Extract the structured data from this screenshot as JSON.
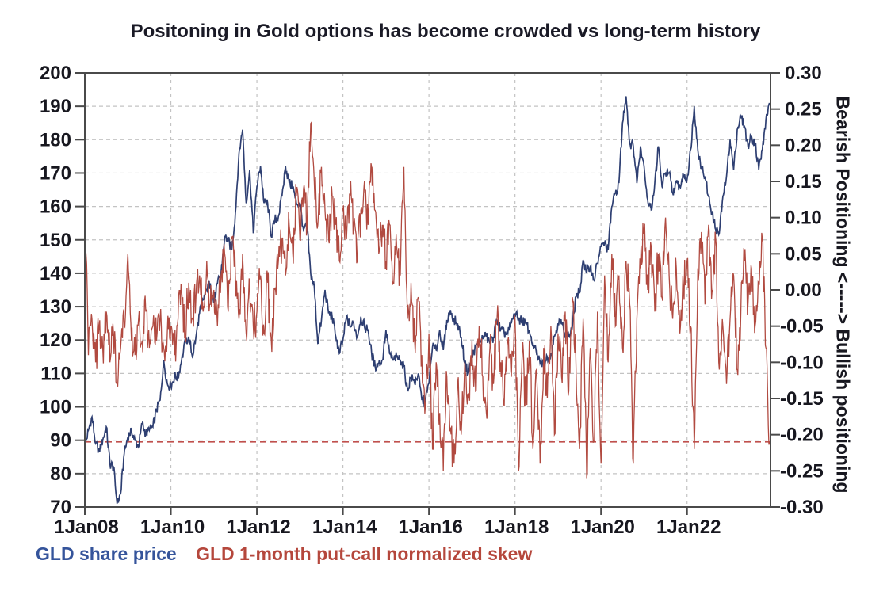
{
  "page": {
    "background": "#ffffff"
  },
  "chart_data": {
    "type": "line",
    "title": "Positoning in Gold options has become crowded vs long-term history",
    "layout_hints": {
      "grid": true,
      "grid_color": "#c3c3c3",
      "border_color": "#4a4a4a",
      "label_color": "#17171f",
      "legend_position": "bottom-left",
      "dual_axis": true
    },
    "x_axis": {
      "start_year": 2008.0,
      "end_year": 2023.92,
      "ticks": [
        {
          "label": "1Jan08",
          "year": 2008
        },
        {
          "label": "1Jan10",
          "year": 2010
        },
        {
          "label": "1Jan12",
          "year": 2012
        },
        {
          "label": "1Jan14",
          "year": 2014
        },
        {
          "label": "1Jan16",
          "year": 2016
        },
        {
          "label": "1Jan18",
          "year": 2018
        },
        {
          "label": "1Jan20",
          "year": 2020
        },
        {
          "label": "1Jan22",
          "year": 2022
        }
      ]
    },
    "left_axis": {
      "min": 70,
      "max": 200,
      "ticks": [
        {
          "label": "200",
          "value": 200
        },
        {
          "label": "190",
          "value": 190
        },
        {
          "label": "180",
          "value": 180
        },
        {
          "label": "170",
          "value": 170
        },
        {
          "label": "160",
          "value": 160
        },
        {
          "label": "150",
          "value": 150
        },
        {
          "label": "140",
          "value": 140
        },
        {
          "label": "130",
          "value": 130
        },
        {
          "label": "120",
          "value": 120
        },
        {
          "label": "110",
          "value": 110
        },
        {
          "label": "100",
          "value": 100
        },
        {
          "label": "90",
          "value": 90
        },
        {
          "label": "80",
          "value": 80
        },
        {
          "label": "70",
          "value": 70
        }
      ]
    },
    "right_axis": {
      "min": -0.3,
      "max": 0.3,
      "title": "Bearish Positioning <-----> Bullish positioning",
      "ticks": [
        {
          "label": "0.30",
          "value": 0.3
        },
        {
          "label": "0.25",
          "value": 0.25
        },
        {
          "label": "0.20",
          "value": 0.2
        },
        {
          "label": "0.15",
          "value": 0.15
        },
        {
          "label": "0.10",
          "value": 0.1
        },
        {
          "label": "0.05",
          "value": 0.05
        },
        {
          "label": "0.00",
          "value": 0.0
        },
        {
          "label": "-0.05",
          "value": -0.05
        },
        {
          "label": "-0.10",
          "value": -0.1
        },
        {
          "label": "-0.15",
          "value": -0.15
        },
        {
          "label": "-0.20",
          "value": -0.2
        },
        {
          "label": "-0.25",
          "value": -0.25
        },
        {
          "label": "-0.30",
          "value": -0.3
        }
      ]
    },
    "reference_line": {
      "axis": "right",
      "value": -0.21,
      "style": "dashed",
      "color": "#c0504d"
    },
    "series": [
      {
        "name": "GLD share price",
        "axis": "left",
        "color": "#2e3f72",
        "stroke_width": 1.7,
        "texture_noise": 1.6,
        "x_start": 2008.0,
        "x_step_years": 0.0833333,
        "values": [
          88,
          93,
          97,
          89,
          87,
          90,
          94,
          83,
          82,
          71,
          74,
          86,
          91,
          93,
          90,
          88,
          95,
          92,
          93,
          94,
          99,
          102,
          114,
          107,
          106,
          109,
          109,
          114,
          119,
          121,
          115,
          121,
          128,
          132,
          135,
          137,
          131,
          137,
          140,
          151,
          150,
          147,
          158,
          176,
          183,
          161,
          171,
          152,
          166,
          172,
          161,
          161,
          151,
          156,
          157,
          163,
          172,
          167,
          166,
          161,
          161,
          153,
          154,
          140,
          136,
          119,
          126,
          135,
          128,
          127,
          121,
          116,
          120,
          127,
          124,
          125,
          121,
          127,
          124,
          123,
          116,
          112,
          113,
          114,
          123,
          116,
          114,
          115,
          114,
          112,
          105,
          109,
          107,
          110,
          102,
          102,
          107,
          118,
          117,
          123,
          117,
          126,
          129,
          126,
          125,
          121,
          113,
          110,
          115,
          118,
          119,
          121,
          121,
          119,
          121,
          126,
          123,
          122,
          122,
          125,
          128,
          126,
          126,
          125,
          123,
          119,
          116,
          113,
          113,
          115,
          116,
          121,
          125,
          125,
          122,
          121,
          124,
          133,
          134,
          144,
          140,
          142,
          138,
          143,
          148,
          149,
          147,
          160,
          164,
          167,
          185,
          193,
          179,
          178,
          167,
          178,
          172,
          162,
          159,
          167,
          178,
          166,
          170,
          170,
          164,
          167,
          166,
          169,
          168,
          177,
          190,
          177,
          172,
          169,
          163,
          158,
          153,
          152,
          163,
          169,
          180,
          171,
          183,
          187,
          184,
          178,
          181,
          179,
          171,
          177,
          186,
          191
        ]
      },
      {
        "name": "GLD 1-month put-call normalized skew",
        "axis": "right",
        "color": "#b14a40",
        "stroke_width": 1.3,
        "texture_noise": 0.03,
        "x_start": 2008.0,
        "x_step_years": 0.0833333,
        "values": [
          0.11,
          -0.09,
          -0.04,
          -0.1,
          -0.05,
          -0.08,
          -0.03,
          -0.1,
          -0.06,
          -0.13,
          -0.08,
          -0.05,
          0.05,
          -0.07,
          -0.09,
          -0.04,
          -0.07,
          -0.03,
          -0.08,
          -0.05,
          -0.07,
          -0.04,
          -0.08,
          -0.06,
          -0.05,
          -0.09,
          -0.04,
          0.0,
          -0.06,
          0.01,
          -0.04,
          -0.01,
          0.02,
          -0.03,
          0.04,
          -0.02,
          0.0,
          -0.05,
          0.02,
          0.05,
          -0.03,
          0.07,
          0.02,
          -0.04,
          0.05,
          -0.06,
          0.0,
          -0.05,
          -0.03,
          0.02,
          -0.06,
          0.01,
          -0.07,
          0.0,
          0.04,
          0.07,
          0.02,
          0.09,
          0.05,
          0.13,
          0.07,
          0.14,
          0.09,
          0.23,
          0.15,
          0.09,
          0.17,
          0.11,
          0.07,
          0.13,
          0.09,
          0.04,
          0.11,
          0.07,
          0.13,
          0.09,
          0.04,
          0.11,
          0.15,
          0.09,
          0.17,
          0.11,
          0.05,
          0.09,
          0.04,
          0.09,
          0.01,
          0.06,
          0.02,
          0.17,
          -0.04,
          0.01,
          -0.07,
          -0.01,
          -0.09,
          -0.16,
          -0.06,
          -0.22,
          -0.1,
          -0.17,
          -0.25,
          -0.12,
          -0.19,
          -0.24,
          -0.13,
          -0.2,
          -0.1,
          -0.15,
          -0.07,
          -0.14,
          -0.05,
          -0.12,
          -0.17,
          -0.08,
          -0.13,
          -0.04,
          -0.1,
          -0.16,
          -0.07,
          -0.12,
          -0.04,
          -0.25,
          -0.09,
          -0.16,
          -0.07,
          -0.22,
          -0.11,
          -0.24,
          -0.08,
          -0.15,
          -0.05,
          -0.2,
          -0.06,
          -0.12,
          -0.03,
          -0.14,
          -0.01,
          -0.1,
          -0.22,
          -0.04,
          -0.26,
          -0.08,
          -0.21,
          -0.03,
          -0.24,
          0.02,
          -0.1,
          0.05,
          -0.05,
          0.02,
          -0.08,
          0.04,
          -0.02,
          -0.24,
          -0.04,
          0.03,
          0.08,
          0.0,
          0.06,
          -0.03,
          0.05,
          -0.01,
          0.1,
          0.02,
          -0.04,
          0.03,
          -0.06,
          0.0,
          0.04,
          -0.05,
          -0.22,
          0.03,
          0.08,
          -0.02,
          0.09,
          0.0,
          0.07,
          -0.11,
          -0.05,
          -0.13,
          -0.04,
          0.02,
          -0.11,
          -0.03,
          0.04,
          -0.02,
          0.03,
          -0.05,
          0.01,
          0.07,
          -0.08,
          -0.21
        ]
      }
    ],
    "legend": {
      "items": [
        {
          "label": "GLD share price",
          "color": "#35549b"
        },
        {
          "label": "GLD 1-month put-call normalized skew",
          "color": "#b5473c"
        }
      ]
    }
  }
}
